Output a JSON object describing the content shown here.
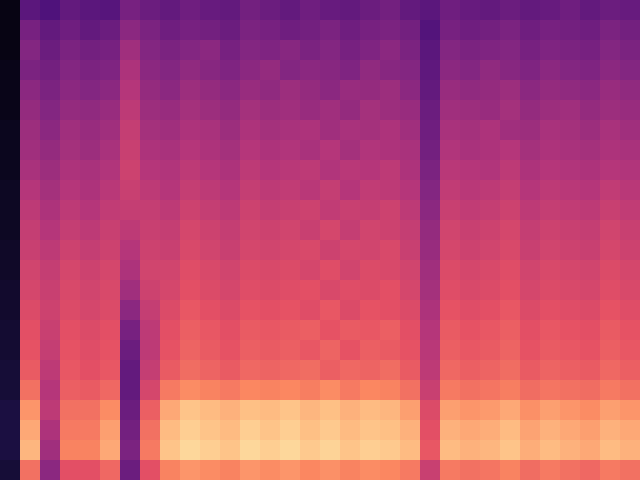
{
  "chart_data": {
    "type": "heatmap",
    "tick_labels": false,
    "zlim": [
      0,
      100
    ],
    "cells": [
      [
        3,
        28,
        25,
        30,
        28,
        27,
        35,
        32,
        30,
        33,
        31,
        30,
        34,
        32,
        30,
        33,
        31,
        30,
        32,
        34,
        30,
        28,
        33,
        31,
        30,
        32,
        30,
        31,
        33,
        30,
        32,
        31
      ],
      [
        3,
        35,
        30,
        33,
        30,
        32,
        40,
        36,
        33,
        35,
        34,
        32,
        36,
        35,
        33,
        34,
        36,
        33,
        35,
        36,
        34,
        26,
        35,
        33,
        34,
        36,
        33,
        35,
        34,
        33,
        36,
        34
      ],
      [
        3,
        38,
        32,
        36,
        34,
        35,
        45,
        38,
        36,
        38,
        40,
        35,
        38,
        37,
        39,
        36,
        38,
        35,
        37,
        40,
        36,
        28,
        38,
        36,
        37,
        38,
        35,
        37,
        36,
        35,
        38,
        36
      ],
      [
        4,
        36,
        34,
        38,
        36,
        37,
        48,
        40,
        38,
        41,
        39,
        37,
        40,
        42,
        38,
        40,
        39,
        37,
        41,
        39,
        38,
        29,
        40,
        38,
        41,
        39,
        37,
        40,
        38,
        37,
        40,
        38
      ],
      [
        4,
        40,
        36,
        40,
        38,
        40,
        50,
        42,
        40,
        44,
        42,
        40,
        43,
        41,
        44,
        42,
        40,
        43,
        42,
        44,
        40,
        30,
        43,
        41,
        42,
        44,
        40,
        42,
        41,
        40,
        43,
        41
      ],
      [
        4,
        42,
        38,
        42,
        41,
        43,
        52,
        44,
        43,
        46,
        44,
        42,
        46,
        44,
        45,
        43,
        45,
        42,
        46,
        44,
        43,
        32,
        45,
        44,
        43,
        46,
        42,
        44,
        45,
        42,
        44,
        43
      ],
      [
        5,
        44,
        40,
        45,
        43,
        45,
        54,
        46,
        45,
        48,
        47,
        44,
        48,
        46,
        47,
        48,
        45,
        47,
        46,
        48,
        45,
        33,
        47,
        46,
        48,
        45,
        44,
        47,
        46,
        44,
        47,
        45
      ],
      [
        5,
        45,
        42,
        46,
        44,
        47,
        55,
        48,
        47,
        50,
        48,
        46,
        50,
        48,
        49,
        47,
        50,
        46,
        49,
        48,
        47,
        34,
        49,
        47,
        48,
        50,
        46,
        48,
        47,
        46,
        48,
        47
      ],
      [
        5,
        47,
        44,
        48,
        47,
        49,
        56,
        50,
        49,
        52,
        50,
        48,
        52,
        50,
        51,
        52,
        49,
        51,
        50,
        52,
        48,
        36,
        51,
        50,
        49,
        52,
        48,
        50,
        49,
        48,
        50,
        49
      ],
      [
        6,
        50,
        46,
        50,
        48,
        51,
        55,
        52,
        50,
        54,
        52,
        50,
        54,
        52,
        53,
        51,
        54,
        50,
        53,
        52,
        50,
        38,
        53,
        51,
        52,
        54,
        50,
        52,
        51,
        50,
        53,
        51
      ],
      [
        6,
        52,
        48,
        52,
        50,
        53,
        54,
        54,
        52,
        56,
        54,
        52,
        56,
        54,
        55,
        56,
        53,
        55,
        54,
        56,
        52,
        40,
        55,
        53,
        54,
        56,
        52,
        54,
        53,
        52,
        55,
        53
      ],
      [
        6,
        54,
        50,
        54,
        52,
        55,
        52,
        55,
        54,
        58,
        56,
        54,
        57,
        56,
        57,
        55,
        58,
        54,
        57,
        56,
        54,
        42,
        57,
        55,
        56,
        58,
        54,
        56,
        55,
        54,
        57,
        55
      ],
      [
        7,
        55,
        52,
        56,
        54,
        56,
        50,
        56,
        55,
        59,
        57,
        55,
        58,
        57,
        58,
        59,
        56,
        58,
        57,
        59,
        55,
        43,
        58,
        56,
        57,
        59,
        55,
        57,
        56,
        55,
        58,
        56
      ],
      [
        7,
        57,
        54,
        58,
        56,
        58,
        48,
        57,
        57,
        61,
        59,
        57,
        60,
        59,
        60,
        58,
        61,
        57,
        60,
        59,
        57,
        45,
        60,
        58,
        59,
        61,
        57,
        59,
        58,
        57,
        60,
        58
      ],
      [
        8,
        58,
        55,
        59,
        57,
        59,
        45,
        56,
        58,
        62,
        60,
        58,
        61,
        60,
        61,
        62,
        59,
        61,
        60,
        62,
        58,
        46,
        61,
        59,
        60,
        62,
        58,
        60,
        59,
        58,
        61,
        59
      ],
      [
        8,
        60,
        56,
        60,
        58,
        60,
        40,
        54,
        60,
        64,
        62,
        60,
        63,
        62,
        63,
        61,
        64,
        60,
        63,
        62,
        60,
        48,
        63,
        61,
        62,
        64,
        60,
        62,
        61,
        60,
        63,
        61
      ],
      [
        9,
        62,
        55,
        62,
        60,
        62,
        35,
        52,
        62,
        66,
        64,
        62,
        65,
        64,
        65,
        66,
        63,
        65,
        64,
        66,
        62,
        50,
        65,
        63,
        64,
        66,
        62,
        64,
        63,
        62,
        65,
        63
      ],
      [
        9,
        63,
        54,
        63,
        61,
        63,
        32,
        52,
        63,
        67,
        65,
        63,
        66,
        65,
        66,
        64,
        67,
        63,
        66,
        65,
        63,
        51,
        66,
        64,
        65,
        67,
        63,
        65,
        64,
        63,
        66,
        64
      ],
      [
        10,
        65,
        52,
        64,
        62,
        64,
        30,
        54,
        65,
        69,
        67,
        65,
        68,
        67,
        68,
        69,
        66,
        68,
        67,
        69,
        65,
        52,
        68,
        66,
        67,
        69,
        65,
        67,
        66,
        65,
        68,
        66
      ],
      [
        10,
        70,
        50,
        66,
        65,
        68,
        30,
        58,
        72,
        76,
        74,
        72,
        75,
        74,
        75,
        73,
        76,
        72,
        75,
        74,
        70,
        55,
        72,
        70,
        71,
        73,
        69,
        71,
        70,
        69,
        72,
        70
      ],
      [
        12,
        78,
        52,
        70,
        70,
        76,
        32,
        66,
        82,
        88,
        86,
        84,
        87,
        86,
        88,
        85,
        87,
        84,
        86,
        85,
        80,
        60,
        80,
        78,
        79,
        82,
        77,
        80,
        78,
        76,
        80,
        78
      ],
      [
        12,
        82,
        48,
        72,
        72,
        80,
        34,
        70,
        86,
        90,
        88,
        86,
        90,
        88,
        90,
        87,
        89,
        86,
        88,
        87,
        84,
        62,
        84,
        82,
        83,
        86,
        81,
        84,
        82,
        80,
        84,
        82
      ],
      [
        12,
        85,
        45,
        74,
        74,
        82,
        36,
        72,
        88,
        92,
        90,
        88,
        92,
        90,
        92,
        89,
        91,
        88,
        90,
        89,
        86,
        64,
        86,
        84,
        85,
        88,
        83,
        86,
        84,
        82,
        86,
        84
      ],
      [
        10,
        70,
        40,
        62,
        62,
        68,
        32,
        62,
        74,
        78,
        76,
        74,
        78,
        76,
        78,
        75,
        77,
        74,
        76,
        75,
        72,
        55,
        72,
        70,
        71,
        74,
        69,
        72,
        70,
        68,
        72,
        70
      ]
    ]
  }
}
